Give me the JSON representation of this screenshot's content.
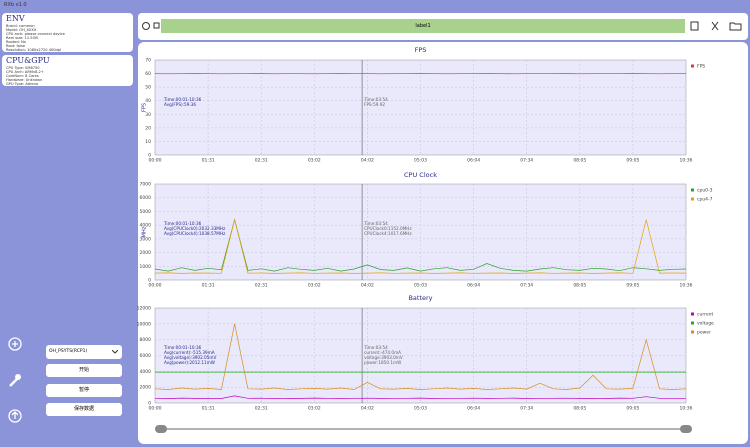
{
  "window": {
    "title": "RXb v1.0"
  },
  "env": {
    "heading": "ENV",
    "lines": [
      "Brand: common",
      "Model: OH_XXXX",
      "CPU arch: please connect device",
      "Ram size: 11.5GB",
      "Rooted: No",
      "Root: false",
      "Resolution: 1080x2720 400dpi"
    ]
  },
  "cpu_gpu": {
    "heading": "CPU&GPU",
    "lines": [
      "CPU Type: SM8750",
      "CPU Arch: ARMv8.2+",
      "CoreNum: 8 Cores",
      "Hardware: Unknown",
      "GPU Type: Adreno"
    ]
  },
  "controls": {
    "device": "OH_PSYTS(RCP1)",
    "start": "开始",
    "pause": "暂停",
    "save": "保存数据"
  },
  "toolbar": {
    "label": "label1"
  },
  "chart_data": [
    {
      "type": "line",
      "title": "FPS",
      "ylabel": "FPS",
      "x": [
        0,
        1,
        2,
        3,
        4,
        5,
        6,
        7,
        8,
        9,
        10,
        11,
        12,
        13,
        14,
        15,
        16,
        17,
        18,
        19,
        20,
        21,
        22,
        23,
        24,
        25,
        26,
        27,
        28,
        29,
        30,
        31,
        32,
        33,
        34,
        35,
        36,
        37,
        38,
        39,
        40
      ],
      "xlim": [
        0,
        40
      ],
      "xticks": [
        {
          "value": 0,
          "label": "00:00"
        },
        {
          "value": 4,
          "label": "01:31"
        },
        {
          "value": 8,
          "label": "02:31"
        },
        {
          "value": 12,
          "label": "03:02"
        },
        {
          "value": 16,
          "label": "04:02"
        },
        {
          "value": 20,
          "label": "05:03"
        },
        {
          "value": 24,
          "label": "06:04"
        },
        {
          "value": 28,
          "label": "07:34"
        },
        {
          "value": 32,
          "label": "08:05"
        },
        {
          "value": 36,
          "label": "09:05"
        },
        {
          "value": 40,
          "label": "10:36"
        }
      ],
      "ylim": [
        0,
        70
      ],
      "yticks": [
        0,
        10,
        20,
        30,
        40,
        50,
        60,
        70
      ],
      "grid": true,
      "cursor": 15.6,
      "series": [
        {
          "name": "FPS",
          "color": "#e0393e",
          "values": [
            59.9,
            59.8,
            59.9,
            60,
            59.9,
            59.8,
            59.9,
            59.9,
            60,
            59.8,
            59.9,
            59.9,
            59.8,
            59.9,
            60,
            59.9,
            59.9,
            59.8,
            59.9,
            59.9,
            60,
            59.9,
            59.8,
            59.9,
            59.9,
            60,
            59.9,
            59.8,
            59.9,
            59.9,
            59.9,
            60,
            59.8,
            59.9,
            59.9,
            59.9,
            60,
            59.9,
            59.8,
            59.9,
            59.9
          ]
        }
      ],
      "annotations": {
        "left": [
          "Time:00:01-10:36",
          "Avg(FPS):59.36"
        ],
        "right": [
          "Time:03:54",
          "FPS:59.92"
        ]
      }
    },
    {
      "type": "line",
      "title": "CPU Clock",
      "ylabel": "MHz",
      "x": [
        0,
        1,
        2,
        3,
        4,
        5,
        6,
        7,
        8,
        9,
        10,
        11,
        12,
        13,
        14,
        15,
        16,
        17,
        18,
        19,
        20,
        21,
        22,
        23,
        24,
        25,
        26,
        27,
        28,
        29,
        30,
        31,
        32,
        33,
        34,
        35,
        36,
        37,
        38,
        39,
        40
      ],
      "xlim": [
        0,
        40
      ],
      "xticks": [
        {
          "value": 0,
          "label": "00:00"
        },
        {
          "value": 4,
          "label": "01:31"
        },
        {
          "value": 8,
          "label": "02:31"
        },
        {
          "value": 12,
          "label": "03:02"
        },
        {
          "value": 16,
          "label": "04:02"
        },
        {
          "value": 20,
          "label": "05:03"
        },
        {
          "value": 24,
          "label": "06:04"
        },
        {
          "value": 28,
          "label": "07:34"
        },
        {
          "value": 32,
          "label": "08:05"
        },
        {
          "value": 36,
          "label": "09:05"
        },
        {
          "value": 40,
          "label": "10:36"
        }
      ],
      "ylim": [
        0,
        7000
      ],
      "yticks": [
        0,
        1000,
        2000,
        3000,
        4000,
        5000,
        6000,
        7000
      ],
      "grid": true,
      "cursor": 15.6,
      "series": [
        {
          "name": "cpu0-3",
          "color": "#2ca02c",
          "values": [
            800,
            650,
            900,
            700,
            850,
            750,
            4400,
            700,
            820,
            650,
            900,
            780,
            700,
            850,
            650,
            800,
            1100,
            760,
            700,
            880,
            650,
            820,
            900,
            700,
            780,
            1200,
            850,
            700,
            650,
            800,
            900,
            750,
            700,
            850,
            800,
            680,
            900,
            820,
            700,
            780,
            800
          ]
        },
        {
          "name": "cpu4-7",
          "color": "#e8a200",
          "values": [
            500,
            520,
            480,
            510,
            500,
            490,
            4400,
            500,
            510,
            480,
            500,
            520,
            490,
            500,
            510,
            480,
            500,
            520,
            490,
            500,
            510,
            480,
            500,
            520,
            490,
            500,
            510,
            480,
            500,
            520,
            490,
            500,
            510,
            480,
            500,
            520,
            490,
            4400,
            500,
            510,
            500
          ]
        }
      ],
      "annotations": {
        "left": [
          "Time:00:01-10:36",
          "Avg(CPUClock0):2032.33MHz",
          "Avg(CPUClock4):1038.57MHz"
        ],
        "right": [
          "Time:03:54",
          "CPUClock0:1152.0MHz",
          "CPUClock4:1017.6MHz"
        ]
      }
    },
    {
      "type": "line",
      "title": "Battery",
      "x": [
        0,
        1,
        2,
        3,
        4,
        5,
        6,
        7,
        8,
        9,
        10,
        11,
        12,
        13,
        14,
        15,
        16,
        17,
        18,
        19,
        20,
        21,
        22,
        23,
        24,
        25,
        26,
        27,
        28,
        29,
        30,
        31,
        32,
        33,
        34,
        35,
        36,
        37,
        38,
        39,
        40
      ],
      "xlim": [
        0,
        40
      ],
      "xticks": [
        {
          "value": 0,
          "label": "00:00"
        },
        {
          "value": 4,
          "label": "01:31"
        },
        {
          "value": 8,
          "label": "02:31"
        },
        {
          "value": 12,
          "label": "03:02"
        },
        {
          "value": 16,
          "label": "04:02"
        },
        {
          "value": 20,
          "label": "05:03"
        },
        {
          "value": 24,
          "label": "06:04"
        },
        {
          "value": 28,
          "label": "07:34"
        },
        {
          "value": 32,
          "label": "08:05"
        },
        {
          "value": 36,
          "label": "09:05"
        },
        {
          "value": 40,
          "label": "10:36"
        }
      ],
      "ylim": [
        0,
        12000
      ],
      "yticks": [
        0,
        2000,
        4000,
        6000,
        8000,
        10000,
        12000
      ],
      "grid": true,
      "cursor": 15.6,
      "series": [
        {
          "name": "current",
          "color": "#c000c0",
          "values": [
            600,
            550,
            620,
            580,
            600,
            570,
            900,
            590,
            610,
            560,
            600,
            580,
            620,
            590,
            560,
            600,
            610,
            580,
            600,
            590,
            620,
            570,
            600,
            590,
            610,
            580,
            600,
            620,
            570,
            600,
            590,
            610,
            580,
            600,
            570,
            620,
            600,
            800,
            590,
            600,
            600
          ]
        },
        {
          "name": "voltage",
          "color": "#22aa22",
          "values": [
            3900,
            3900,
            3900,
            3900,
            3900,
            3900,
            3900,
            3900,
            3900,
            3900,
            3900,
            3900,
            3900,
            3900,
            3900,
            3900,
            3900,
            3900,
            3900,
            3900,
            3900,
            3900,
            3900,
            3900,
            3900,
            3900,
            3900,
            3900,
            3900,
            3900,
            3900,
            3900,
            3900,
            3900,
            3900,
            3900,
            3900,
            3900,
            3900,
            3900,
            3900
          ]
        },
        {
          "name": "power",
          "color": "#d98c1a",
          "values": [
            1800,
            1700,
            1900,
            1750,
            1850,
            1700,
            10000,
            1800,
            1750,
            1900,
            1700,
            1800,
            1850,
            1750,
            1900,
            1700,
            2600,
            1800,
            1750,
            1850,
            1700,
            1800,
            1900,
            1750,
            1850,
            1700,
            1800,
            1900,
            1750,
            2500,
            1800,
            1700,
            1900,
            3500,
            1800,
            1750,
            1850,
            8000,
            1800,
            1700,
            1800
          ]
        }
      ],
      "annotations": {
        "left": [
          "Time:00:01-10:36",
          "Avg(current):-515.39mA",
          "Avg(voltage):3902.05mV",
          "Avg(power):2012.11mW"
        ],
        "right": [
          "Time:03:54",
          "current:-474.0mA",
          "voltage:3903.0mV",
          "power:1850.1mW"
        ]
      }
    }
  ]
}
